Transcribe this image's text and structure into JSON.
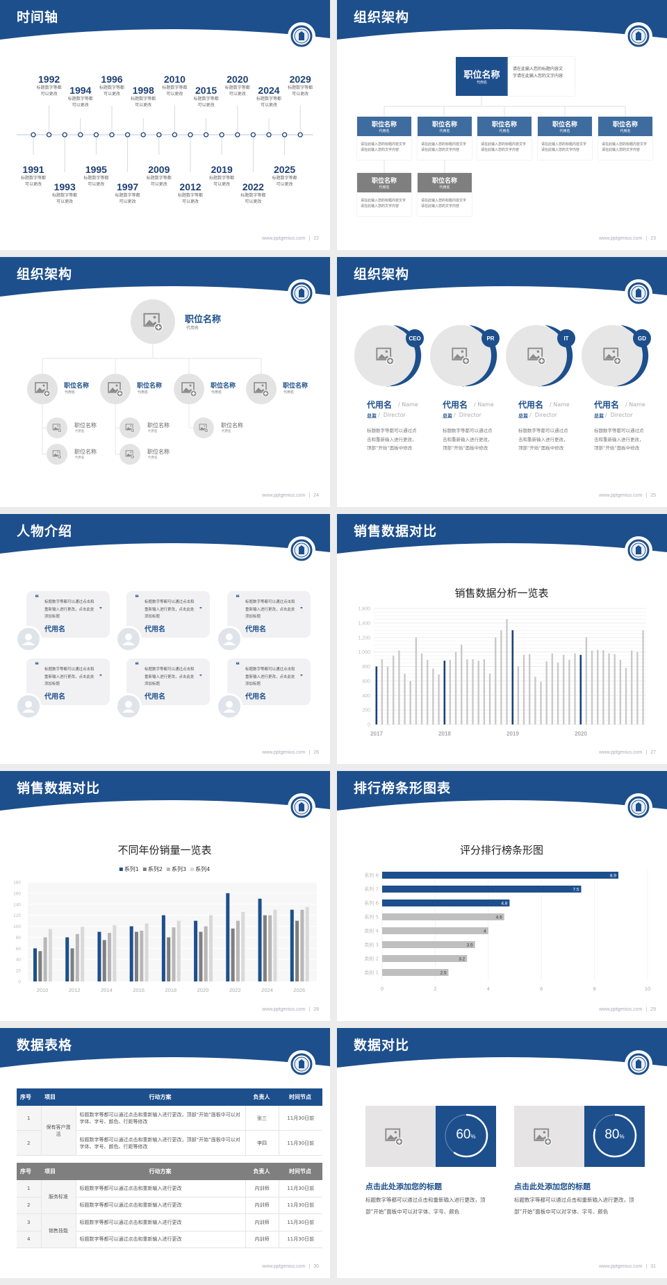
{
  "colors": {
    "primary": "#1d4f8c",
    "dark_bar": "#1f3f7a",
    "gray_bar": "#c9c9c9",
    "gray_box": "#7f7f7f",
    "light_gray": "#e6e6e6"
  },
  "footer_site": "www.pptgenius.com",
  "footer_sep": "|",
  "slides": [
    {
      "page": "22",
      "title": "时间轴",
      "timeline": [
        {
          "year": "1991",
          "line1": "标题数字等都",
          "line2": "可以更改"
        },
        {
          "year": "1992",
          "line1": "标题数字等都",
          "line2": "可以更改"
        },
        {
          "year": "1993",
          "line1": "标题数字等都",
          "line2": "可以更改"
        },
        {
          "year": "1994",
          "line1": "标题数字等都",
          "line2": "可以更改"
        },
        {
          "year": "1995",
          "line1": "标题数字等都",
          "line2": "可以更改"
        },
        {
          "year": "1996",
          "line1": "标题数字等都",
          "line2": "可以更改"
        },
        {
          "year": "1997",
          "line1": "标题数字等都",
          "line2": "可以更改"
        },
        {
          "year": "1998",
          "line1": "标题数字等都",
          "line2": "可以更改"
        },
        {
          "year": "2009",
          "line1": "标题数字等都",
          "line2": "可以更改"
        },
        {
          "year": "2010",
          "line1": "标题数字等都",
          "line2": "可以更改"
        },
        {
          "year": "2012",
          "line1": "标题数字等都",
          "line2": "可以更改"
        },
        {
          "year": "2015",
          "line1": "标题数字等都",
          "line2": "可以更改"
        },
        {
          "year": "2019",
          "line1": "标题数字等都",
          "line2": "可以更改"
        },
        {
          "year": "2020",
          "line1": "标题数字等都",
          "line2": "可以更改"
        },
        {
          "year": "2022",
          "line1": "标题数字等都",
          "line2": "可以更改"
        },
        {
          "year": "2024",
          "line1": "标题数字等都",
          "line2": "可以更改"
        },
        {
          "year": "2025",
          "line1": "标题数字等都",
          "line2": "可以更改"
        },
        {
          "year": "2029",
          "line1": "标题数字等都",
          "line2": "可以更改"
        }
      ]
    },
    {
      "page": "23",
      "title": "组织架构",
      "top": {
        "title": "职位名称",
        "sub": "代用名",
        "desc": "请在此输入您的标题内容文字请在此输入您的文字内容"
      },
      "boxes": [
        {
          "title": "职位名称",
          "sub": "代用名",
          "desc": "请在此输入您的标题内容文字请在此输入您的文字内容"
        },
        {
          "title": "职位名称",
          "sub": "代用名",
          "desc": "请在此输入您的标题内容文字请在此输入您的文字内容"
        },
        {
          "title": "职位名称",
          "sub": "代用名",
          "desc": "请在此输入您的标题内容文字请在此输入您的文字内容"
        },
        {
          "title": "职位名称",
          "sub": "代用名",
          "desc": "请在此输入您的标题内容文字请在此输入您的文字内容"
        },
        {
          "title": "职位名称",
          "sub": "代用名",
          "desc": "请在此输入您的标题内容文字请在此输入您的文字内容"
        },
        {
          "title": "职位名称",
          "sub": "代用名",
          "desc": "请在此输入您的标题内容文字请在此输入您的文字内容"
        },
        {
          "title": "职位名称",
          "sub": "代用名",
          "desc": "请在此输入您的标题内容文字请在此输入您的文字内容"
        }
      ]
    },
    {
      "page": "24",
      "title": "组织架构",
      "root": {
        "title": "职位名称",
        "sub": "代用名"
      },
      "branches": [
        {
          "title": "职位名称",
          "sub": "代用名",
          "children": [
            {
              "title": "职位名称",
              "sub": "代用名"
            },
            {
              "title": "职位名称",
              "sub": "代用名"
            }
          ]
        },
        {
          "title": "职位名称",
          "sub": "代用名",
          "children": [
            {
              "title": "职位名称",
              "sub": "代用名"
            },
            {
              "title": "职位名称",
              "sub": "代用名"
            }
          ]
        },
        {
          "title": "职位名称",
          "sub": "代用名",
          "children": [
            {
              "title": "职位名称",
              "sub": "代用名"
            }
          ]
        },
        {
          "title": "职位名称",
          "sub": "代用名",
          "children": []
        }
      ]
    },
    {
      "page": "25",
      "title": "组织架构",
      "members": [
        {
          "badge": "CEO",
          "name": "代用名",
          "name_en": "/ Name",
          "role": "总监",
          "role_en": "/  Director",
          "desc": "标题数字等都可以通过点击和重新输入进行更改，顶部“开始”面板中修改"
        },
        {
          "badge": "PR",
          "name": "代用名",
          "name_en": "/ Name",
          "role": "总监",
          "role_en": "/  Director",
          "desc": "标题数字等都可以通过点击和重新输入进行更改，顶部“开始”面板中修改"
        },
        {
          "badge": "IT",
          "name": "代用名",
          "name_en": "/ Name",
          "role": "总监",
          "role_en": "/  Director",
          "desc": "标题数字等都可以通过点击和重新输入进行更改，顶部“开始”面板中修改"
        },
        {
          "badge": "GD",
          "name": "代用名",
          "name_en": "/ Name",
          "role": "总监",
          "role_en": "/  Director",
          "desc": "标题数字等都可以通过点击和重新输入进行更改，顶部“开始”面板中修改"
        }
      ]
    },
    {
      "page": "26",
      "title": "人物介绍",
      "cards": [
        {
          "quote": "标题数字等都可以通过点击和重新输入进行更改，点击此处添加标题",
          "name": "代用名"
        },
        {
          "quote": "标题数字等都可以通过点击和重新输入进行更改，点击此处添加标题",
          "name": "代用名"
        },
        {
          "quote": "标题数字等都可以通过点击和重新输入进行更改，点击此处添加标题",
          "name": "代用名"
        },
        {
          "quote": "标题数字等都可以通过点击和重新输入进行更改，点击此处添加标题",
          "name": "代用名"
        },
        {
          "quote": "标题数字等都可以通过点击和重新输入进行更改，点击此处添加标题",
          "name": "代用名"
        },
        {
          "quote": "标题数字等都可以通过点击和重新输入进行更改，点击此处添加标题",
          "name": "代用名"
        }
      ],
      "open_quote": "❝",
      "close_quote": "❞"
    },
    {
      "page": "27",
      "title": "销售数据对比"
    },
    {
      "page": "28",
      "title": "销售数据对比"
    },
    {
      "page": "29",
      "title": "排行榜条形图表"
    },
    {
      "page": "30",
      "title": "数据表格",
      "headers": [
        "序号",
        "项目",
        "行动方案",
        "负责人",
        "时间节点"
      ],
      "table1": [
        {
          "group": "保有客户激活",
          "rows": [
            {
              "no": "1",
              "plan": "标题数字等都可以通过点击和重新输入进行更改，顶部“开始”面板中可以对字体、字号、颜色、行距等修改",
              "owner": "张三",
              "date": "11月30日前"
            },
            {
              "no": "2",
              "plan": "标题数字等都可以通过点击和重新输入进行更改，顶部“开始”面板中可以对字体、字号、颜色、行距等修改",
              "owner": "李四",
              "date": "11月30日前"
            }
          ]
        }
      ],
      "table2": [
        {
          "group": "服务标准",
          "rows": [
            {
              "no": "1",
              "plan": "标题数字等都可以通过点击和重新输入进行更改",
              "owner": "内训师",
              "date": "11月30日前"
            },
            {
              "no": "2",
              "plan": "标题数字等都可以通过点击和重新输入进行更改",
              "owner": "内训师",
              "date": "11月30日前"
            }
          ]
        },
        {
          "group": "销售技能",
          "rows": [
            {
              "no": "3",
              "plan": "标题数字等都可以通过点击和重新输入进行更改",
              "owner": "内训师",
              "date": "11月30日前"
            },
            {
              "no": "4",
              "plan": "标题数字等都可以通过点击和重新输入进行更改",
              "owner": "内训师",
              "date": "11月30日前"
            }
          ]
        }
      ]
    },
    {
      "page": "31",
      "title": "数据对比",
      "stats": [
        {
          "percent": 60,
          "value": "60",
          "unit": "%",
          "title": "点击此处添加您的标题",
          "desc": "标题数字等都可以通过点击和重新输入进行更改，顶部“开始”面板中可以对字体、字号、颜色"
        },
        {
          "percent": 80,
          "value": "80",
          "unit": "%",
          "title": "点击此处添加您的标题",
          "desc": "标题数字等都可以通过点击和重新输入进行更改，顶部“开始”面板中可以对字体、字号、颜色"
        }
      ]
    }
  ],
  "chart_data": [
    {
      "type": "bar",
      "title": "销售数据分析一览表",
      "ylim": [
        0,
        1600
      ],
      "yticks": [
        "0",
        "200",
        "400",
        "600",
        "800",
        "1,000",
        "1,200",
        "1,400",
        "1,600"
      ],
      "x_labels": [
        "2017",
        "2018",
        "2019",
        "2020"
      ],
      "periods_per_label": 12,
      "highlighted_indices": [
        0,
        12,
        24,
        36
      ],
      "grid": true,
      "series": [
        {
          "values": [
            800,
            900,
            800,
            950,
            1020,
            700,
            600,
            1200,
            980,
            890,
            770,
            690,
            880,
            890,
            1000,
            1100,
            900,
            900,
            880,
            900,
            700,
            1200,
            1300,
            1450,
            1300,
            800,
            960,
            970,
            660,
            590,
            870,
            980,
            855,
            960,
            890,
            980,
            960,
            1200,
            1020,
            1030,
            1025,
            980,
            970,
            890,
            780,
            1020,
            1000,
            1300
          ]
        }
      ]
    },
    {
      "type": "bar",
      "title": "不同年份销量一览表",
      "ylim": [
        0,
        180
      ],
      "yticks": [
        "0",
        "20",
        "40",
        "60",
        "80",
        "100",
        "120",
        "140",
        "160",
        "180"
      ],
      "categories": [
        "2010",
        "2012",
        "2014",
        "2016",
        "2018",
        "2020",
        "2022",
        "2024",
        "2026"
      ],
      "legend": "top",
      "grid": true,
      "series": [
        {
          "name": "系列1",
          "color": "#1d4f8c",
          "values": [
            60,
            80,
            90,
            100,
            120,
            110,
            160,
            150,
            130
          ]
        },
        {
          "name": "系列2",
          "color": "#7f7f7f",
          "values": [
            55,
            60,
            75,
            90,
            80,
            90,
            96,
            120,
            110
          ]
        },
        {
          "name": "系列3",
          "color": "#b7b7b7",
          "values": [
            80,
            86,
            88,
            92,
            98,
            100,
            110,
            120,
            130
          ]
        },
        {
          "name": "系列4",
          "color": "#d9d9d9",
          "values": [
            95,
            99,
            102,
            105,
            110,
            120,
            126,
            130,
            135
          ]
        }
      ]
    },
    {
      "type": "bar",
      "orientation": "horizontal",
      "title": "评分排行榜条形图",
      "xlim": [
        0,
        10
      ],
      "xticks": [
        "0",
        "2",
        "4",
        "6",
        "8",
        "10"
      ],
      "categories": [
        "系列 8",
        "系列 7",
        "系列 6",
        "系列 5",
        "类别 4",
        "类别 3",
        "类别 2",
        "类别 1"
      ],
      "values": [
        8.9,
        7.5,
        4.8,
        4.6,
        4,
        3.5,
        3.2,
        2.5
      ],
      "labels": [
        "8.9",
        "7.5",
        "4.8",
        "4.6",
        "4",
        "3.5",
        "3.2",
        "2.5"
      ],
      "colors": [
        "#1d4f8c",
        "#1d4f8c",
        "#1d4f8c",
        "#bfbfbf",
        "#bfbfbf",
        "#bfbfbf",
        "#bfbfbf",
        "#bfbfbf"
      ]
    }
  ]
}
